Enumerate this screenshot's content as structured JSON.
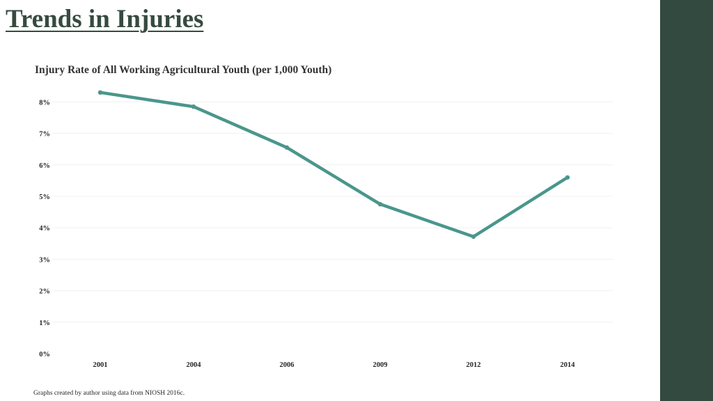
{
  "slide": {
    "title": "Trends in Injuries",
    "footnote": "Graphs created by author using data from NIOSH 2016c.",
    "sidebar_color": "#334a40"
  },
  "chart_data": {
    "type": "line",
    "title": "Injury Rate of All Working Agricultural Youth (per 1,000 Youth)",
    "xlabel": "",
    "ylabel": "",
    "categories": [
      "2001",
      "2004",
      "2006",
      "2009",
      "2012",
      "2014"
    ],
    "series": [
      {
        "values": [
          8.3,
          7.85,
          6.55,
          4.75,
          3.72,
          5.6
        ],
        "color": "#4a968c"
      }
    ],
    "ylim": [
      0,
      8
    ],
    "yticks": [
      "0%",
      "1%",
      "2%",
      "3%",
      "4%",
      "5%",
      "6%",
      "7%",
      "8%"
    ],
    "grid": true,
    "legend": "none"
  }
}
